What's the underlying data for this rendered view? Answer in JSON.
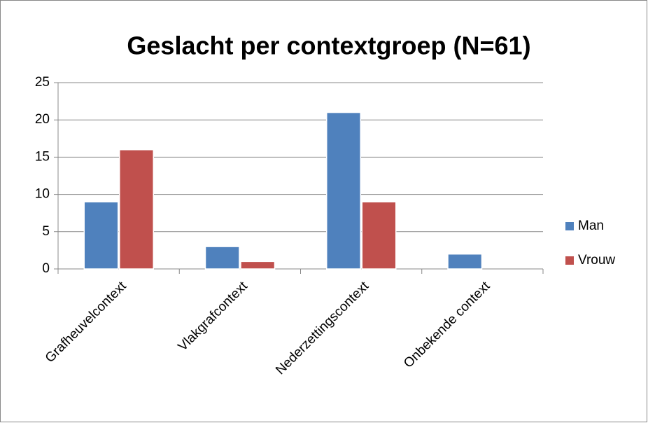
{
  "chart_data": {
    "type": "bar",
    "title": "Geslacht per contextgroep (N=61)",
    "categories": [
      "Grafheuvelcontext",
      "Vlakgrafcontext",
      "Nederzettingscontext",
      "Onbekende context"
    ],
    "series": [
      {
        "name": "Man",
        "color": "#4f81bd",
        "values": [
          9,
          3,
          21,
          2
        ]
      },
      {
        "name": "Vrouw",
        "color": "#c0504d",
        "values": [
          16,
          1,
          9,
          0
        ]
      }
    ],
    "ylim": [
      0,
      25
    ],
    "yticks": [
      0,
      5,
      10,
      15,
      20,
      25
    ],
    "grid": true,
    "legend": "right"
  }
}
